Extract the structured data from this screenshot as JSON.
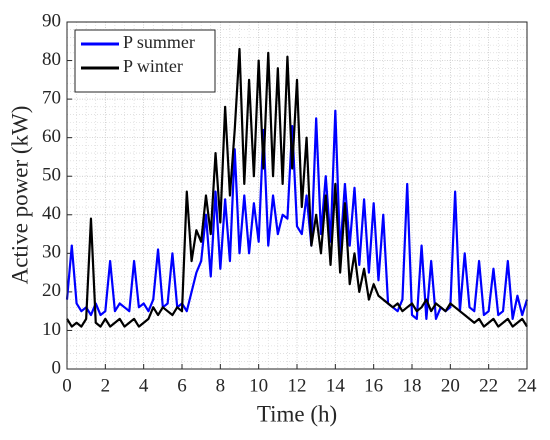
{
  "chart_data": {
    "type": "line",
    "xlabel": "Time (h)",
    "ylabel": "Active power (kW)",
    "x": [
      0,
      0.25,
      0.5,
      0.75,
      1,
      1.25,
      1.5,
      1.75,
      2,
      2.25,
      2.5,
      2.75,
      3,
      3.25,
      3.5,
      3.75,
      4,
      4.25,
      4.5,
      4.75,
      5,
      5.25,
      5.5,
      5.75,
      6,
      6.25,
      6.5,
      6.75,
      7,
      7.25,
      7.5,
      7.75,
      8,
      8.25,
      8.5,
      8.75,
      9,
      9.25,
      9.5,
      9.75,
      10,
      10.25,
      10.5,
      10.75,
      11,
      11.25,
      11.5,
      11.75,
      12,
      12.25,
      12.5,
      12.75,
      13,
      13.25,
      13.5,
      13.75,
      14,
      14.25,
      14.5,
      14.75,
      15,
      15.25,
      15.5,
      15.75,
      16,
      16.25,
      16.5,
      16.75,
      17,
      17.25,
      17.5,
      17.75,
      18,
      18.25,
      18.5,
      18.75,
      19,
      19.25,
      19.5,
      19.75,
      20,
      20.25,
      20.5,
      20.75,
      21,
      21.25,
      21.5,
      21.75,
      22,
      22.25,
      22.5,
      22.75,
      23,
      23.25,
      23.5,
      23.75,
      24
    ],
    "series": [
      {
        "name": "P summer",
        "color": "#0000ff",
        "values": [
          18,
          32,
          17,
          15,
          16,
          14,
          17,
          14,
          15,
          28,
          15,
          17,
          16,
          15,
          28,
          16,
          17,
          15,
          18,
          31,
          16,
          17,
          30,
          16,
          17,
          15,
          20,
          25,
          28,
          40,
          24,
          46,
          26,
          44,
          28,
          57,
          30,
          45,
          30,
          43,
          33,
          62,
          32,
          45,
          35,
          40,
          39,
          63,
          37,
          35,
          45,
          32,
          65,
          35,
          50,
          33,
          67,
          30,
          48,
          32,
          47,
          27,
          44,
          25,
          43,
          23,
          40,
          17,
          16,
          15,
          18,
          48,
          14,
          13,
          32,
          13,
          28,
          13,
          16,
          15,
          16,
          46,
          15,
          30,
          16,
          15,
          28,
          14,
          15,
          26,
          14,
          15,
          28,
          13,
          19,
          14,
          18
        ]
      },
      {
        "name": "P winter",
        "color": "#000000",
        "values": [
          13,
          11,
          12,
          11,
          13,
          39,
          12,
          11,
          13,
          11,
          12,
          13,
          11,
          12,
          13,
          11,
          12,
          13,
          16,
          14,
          16,
          15,
          14,
          16,
          15,
          46,
          28,
          36,
          33,
          45,
          35,
          56,
          38,
          68,
          45,
          62,
          83,
          48,
          75,
          50,
          80,
          52,
          82,
          50,
          78,
          48,
          81,
          52,
          75,
          42,
          60,
          32,
          40,
          30,
          45,
          27,
          48,
          25,
          43,
          22,
          30,
          20,
          26,
          18,
          22,
          19,
          18,
          17,
          16,
          17,
          15,
          16,
          17,
          15,
          16,
          18,
          15,
          17,
          16,
          15,
          17,
          16,
          15,
          14,
          13,
          12,
          13,
          11,
          12,
          13,
          11,
          12,
          13,
          11,
          12,
          13,
          11
        ]
      }
    ],
    "xlim": [
      0,
      24
    ],
    "xticks": [
      0,
      2,
      4,
      6,
      8,
      10,
      12,
      14,
      16,
      18,
      20,
      22,
      24
    ],
    "ylim": [
      0,
      90
    ],
    "yticks": [
      0,
      10,
      20,
      30,
      40,
      50,
      60,
      70,
      80,
      90
    ],
    "grid": true,
    "legend": "upper left"
  }
}
